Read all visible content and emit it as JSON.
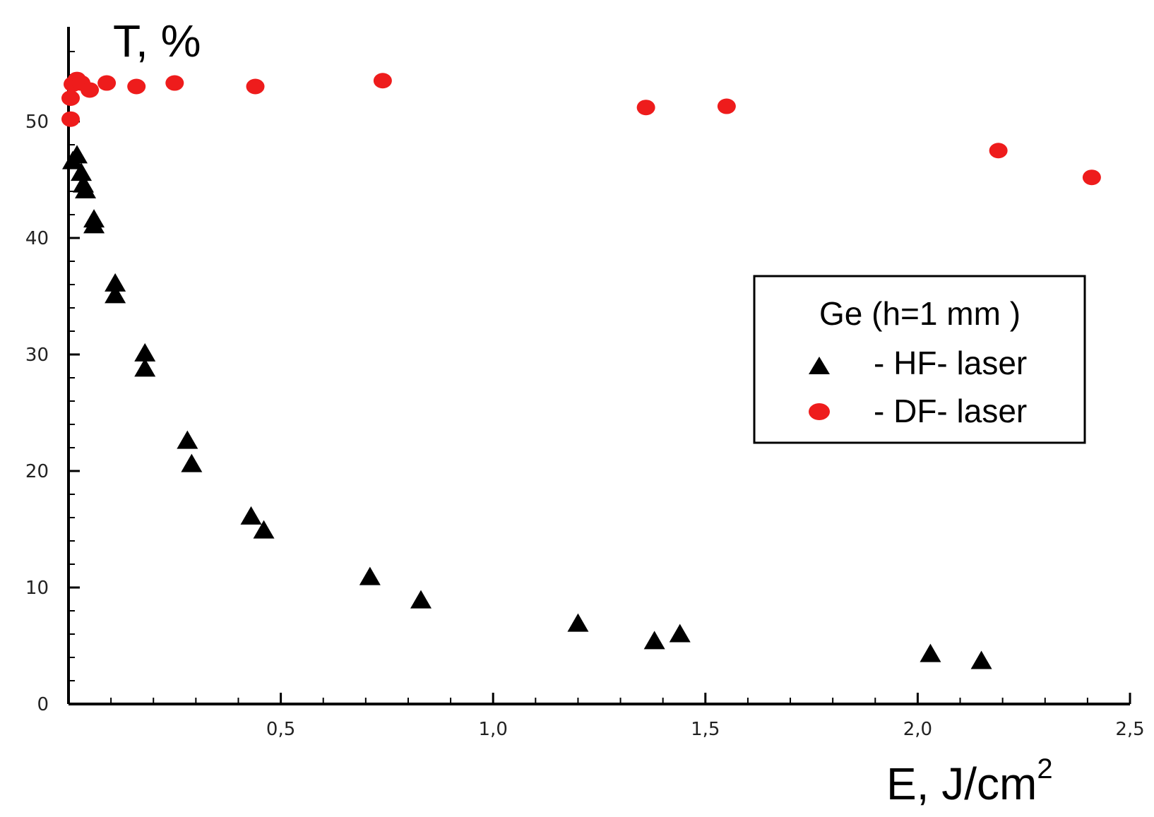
{
  "chart_data": {
    "type": "scatter",
    "title": "",
    "xlabel": "E, J/cm",
    "xlabel_superscript": "2",
    "ylabel": "T, %",
    "xlim": [
      0,
      2.5
    ],
    "ylim": [
      0,
      58
    ],
    "x_ticks": [
      {
        "value": 0.5,
        "label": "0,5"
      },
      {
        "value": 1.0,
        "label": "1,0"
      },
      {
        "value": 1.5,
        "label": "1,5"
      },
      {
        "value": 2.0,
        "label": "2,0"
      },
      {
        "value": 2.5,
        "label": "2,5"
      }
    ],
    "y_ticks": [
      {
        "value": 0,
        "label": "0"
      },
      {
        "value": 10,
        "label": "10"
      },
      {
        "value": 20,
        "label": "20"
      },
      {
        "value": 30,
        "label": "30"
      },
      {
        "value": 40,
        "label": "40"
      },
      {
        "value": 50,
        "label": "50"
      }
    ],
    "grid": false,
    "legend": {
      "position": "right",
      "title": "Ge (h=1 mm )",
      "entries": [
        {
          "label": "- HF- laser",
          "marker": "triangle",
          "color": "#000000"
        },
        {
          "label": "- DF- laser",
          "marker": "circle",
          "color": "#ee1c1c"
        }
      ]
    },
    "series": [
      {
        "name": "- HF- laser",
        "marker": "triangle",
        "color": "#000000",
        "points": [
          {
            "x": 0.01,
            "y": 46.5
          },
          {
            "x": 0.02,
            "y": 47.0
          },
          {
            "x": 0.03,
            "y": 45.5
          },
          {
            "x": 0.035,
            "y": 44.5
          },
          {
            "x": 0.04,
            "y": 44.0
          },
          {
            "x": 0.06,
            "y": 41.5
          },
          {
            "x": 0.06,
            "y": 41.0
          },
          {
            "x": 0.11,
            "y": 36.0
          },
          {
            "x": 0.11,
            "y": 35.0
          },
          {
            "x": 0.18,
            "y": 30.0
          },
          {
            "x": 0.18,
            "y": 28.7
          },
          {
            "x": 0.28,
            "y": 22.5
          },
          {
            "x": 0.29,
            "y": 20.5
          },
          {
            "x": 0.43,
            "y": 16.0
          },
          {
            "x": 0.46,
            "y": 14.8
          },
          {
            "x": 0.71,
            "y": 10.8
          },
          {
            "x": 0.83,
            "y": 8.8
          },
          {
            "x": 1.2,
            "y": 6.8
          },
          {
            "x": 1.38,
            "y": 5.3
          },
          {
            "x": 1.44,
            "y": 5.9
          },
          {
            "x": 2.03,
            "y": 4.2
          },
          {
            "x": 2.15,
            "y": 3.6
          }
        ]
      },
      {
        "name": "- DF- laser",
        "marker": "circle",
        "color": "#ee1c1c",
        "points": [
          {
            "x": 0.005,
            "y": 50.2
          },
          {
            "x": 0.005,
            "y": 52.0
          },
          {
            "x": 0.01,
            "y": 53.2
          },
          {
            "x": 0.02,
            "y": 53.6
          },
          {
            "x": 0.03,
            "y": 53.3
          },
          {
            "x": 0.05,
            "y": 52.7
          },
          {
            "x": 0.09,
            "y": 53.3
          },
          {
            "x": 0.16,
            "y": 53.0
          },
          {
            "x": 0.25,
            "y": 53.3
          },
          {
            "x": 0.44,
            "y": 53.0
          },
          {
            "x": 0.74,
            "y": 53.5
          },
          {
            "x": 1.36,
            "y": 51.2
          },
          {
            "x": 1.55,
            "y": 51.3
          },
          {
            "x": 2.19,
            "y": 47.5
          },
          {
            "x": 2.41,
            "y": 45.2
          }
        ]
      }
    ]
  }
}
